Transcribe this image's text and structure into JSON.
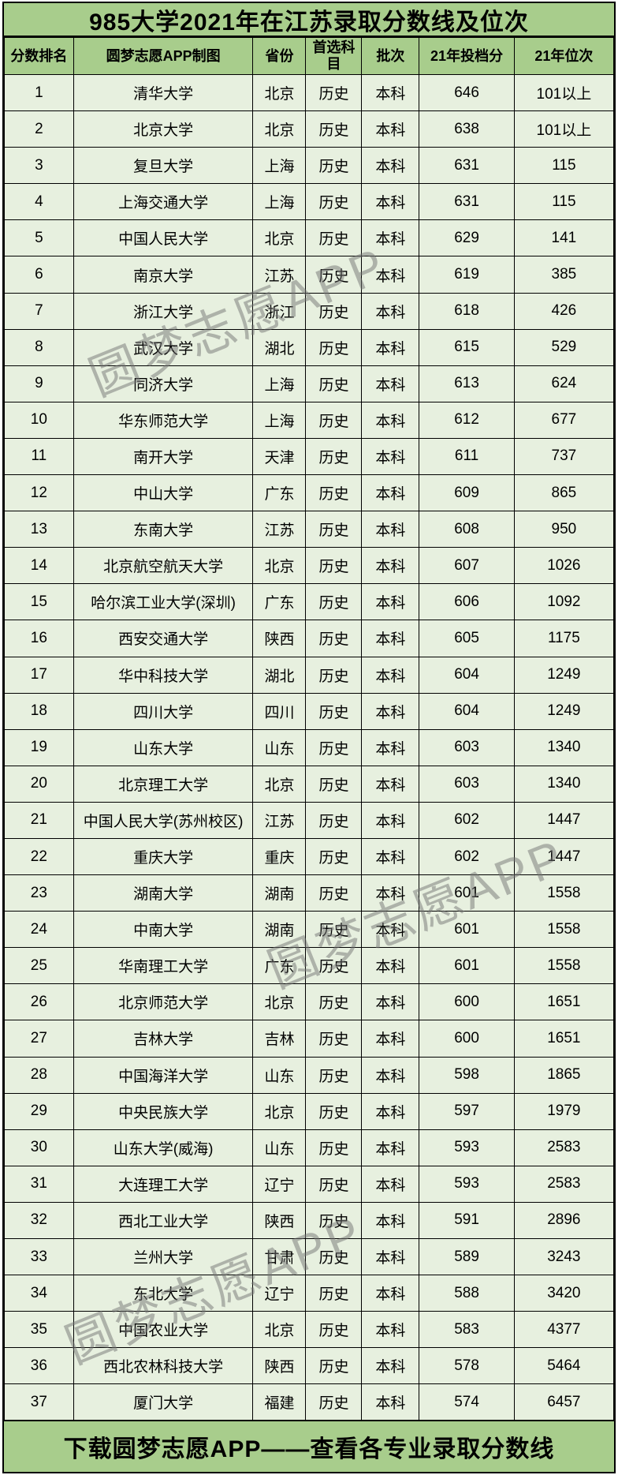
{
  "chart_data": {
    "type": "table",
    "title": "985大学2021年在江苏录取分数线及位次",
    "columns": [
      "分数排名",
      "圆梦志愿APP制图",
      "省份",
      "首选科目",
      "批次",
      "21年投档分",
      "21年位次"
    ],
    "column_keys": [
      "rank",
      "university",
      "province",
      "subject",
      "batch",
      "score",
      "position"
    ],
    "rows": [
      [
        "1",
        "清华大学",
        "北京",
        "历史",
        "本科",
        "646",
        "101以上"
      ],
      [
        "2",
        "北京大学",
        "北京",
        "历史",
        "本科",
        "638",
        "101以上"
      ],
      [
        "3",
        "复旦大学",
        "上海",
        "历史",
        "本科",
        "631",
        "115"
      ],
      [
        "4",
        "上海交通大学",
        "上海",
        "历史",
        "本科",
        "631",
        "115"
      ],
      [
        "5",
        "中国人民大学",
        "北京",
        "历史",
        "本科",
        "629",
        "141"
      ],
      [
        "6",
        "南京大学",
        "江苏",
        "历史",
        "本科",
        "619",
        "385"
      ],
      [
        "7",
        "浙江大学",
        "浙江",
        "历史",
        "本科",
        "618",
        "426"
      ],
      [
        "8",
        "武汉大学",
        "湖北",
        "历史",
        "本科",
        "615",
        "529"
      ],
      [
        "9",
        "同济大学",
        "上海",
        "历史",
        "本科",
        "613",
        "624"
      ],
      [
        "10",
        "华东师范大学",
        "上海",
        "历史",
        "本科",
        "612",
        "677"
      ],
      [
        "11",
        "南开大学",
        "天津",
        "历史",
        "本科",
        "611",
        "737"
      ],
      [
        "12",
        "中山大学",
        "广东",
        "历史",
        "本科",
        "609",
        "865"
      ],
      [
        "13",
        "东南大学",
        "江苏",
        "历史",
        "本科",
        "608",
        "950"
      ],
      [
        "14",
        "北京航空航天大学",
        "北京",
        "历史",
        "本科",
        "607",
        "1026"
      ],
      [
        "15",
        "哈尔滨工业大学(深圳)",
        "广东",
        "历史",
        "本科",
        "606",
        "1092"
      ],
      [
        "16",
        "西安交通大学",
        "陕西",
        "历史",
        "本科",
        "605",
        "1175"
      ],
      [
        "17",
        "华中科技大学",
        "湖北",
        "历史",
        "本科",
        "604",
        "1249"
      ],
      [
        "18",
        "四川大学",
        "四川",
        "历史",
        "本科",
        "604",
        "1249"
      ],
      [
        "19",
        "山东大学",
        "山东",
        "历史",
        "本科",
        "603",
        "1340"
      ],
      [
        "20",
        "北京理工大学",
        "北京",
        "历史",
        "本科",
        "603",
        "1340"
      ],
      [
        "21",
        "中国人民大学(苏州校区)",
        "江苏",
        "历史",
        "本科",
        "602",
        "1447"
      ],
      [
        "22",
        "重庆大学",
        "重庆",
        "历史",
        "本科",
        "602",
        "1447"
      ],
      [
        "23",
        "湖南大学",
        "湖南",
        "历史",
        "本科",
        "601",
        "1558"
      ],
      [
        "24",
        "中南大学",
        "湖南",
        "历史",
        "本科",
        "601",
        "1558"
      ],
      [
        "25",
        "华南理工大学",
        "广东",
        "历史",
        "本科",
        "601",
        "1558"
      ],
      [
        "26",
        "北京师范大学",
        "北京",
        "历史",
        "本科",
        "600",
        "1651"
      ],
      [
        "27",
        "吉林大学",
        "吉林",
        "历史",
        "本科",
        "600",
        "1651"
      ],
      [
        "28",
        "中国海洋大学",
        "山东",
        "历史",
        "本科",
        "598",
        "1865"
      ],
      [
        "29",
        "中央民族大学",
        "北京",
        "历史",
        "本科",
        "597",
        "1979"
      ],
      [
        "30",
        "山东大学(威海)",
        "山东",
        "历史",
        "本科",
        "593",
        "2583"
      ],
      [
        "31",
        "大连理工大学",
        "辽宁",
        "历史",
        "本科",
        "593",
        "2583"
      ],
      [
        "32",
        "西北工业大学",
        "陕西",
        "历史",
        "本科",
        "591",
        "2896"
      ],
      [
        "33",
        "兰州大学",
        "甘肃",
        "历史",
        "本科",
        "589",
        "3243"
      ],
      [
        "34",
        "东北大学",
        "辽宁",
        "历史",
        "本科",
        "588",
        "3420"
      ],
      [
        "35",
        "中国农业大学",
        "北京",
        "历史",
        "本科",
        "583",
        "4377"
      ],
      [
        "36",
        "西北农林科技大学",
        "陕西",
        "历史",
        "本科",
        "578",
        "5464"
      ],
      [
        "37",
        "厦门大学",
        "福建",
        "历史",
        "本科",
        "574",
        "6457"
      ]
    ]
  },
  "footer": {
    "text": "下载圆梦志愿APP——查看各专业录取分数线"
  },
  "watermark": {
    "text": "圆梦志愿APP"
  },
  "colors": {
    "band_green": "#A8CD8C",
    "row_green": "#E7F0DF",
    "border": "#000000",
    "watermark_gray": "#737373"
  }
}
